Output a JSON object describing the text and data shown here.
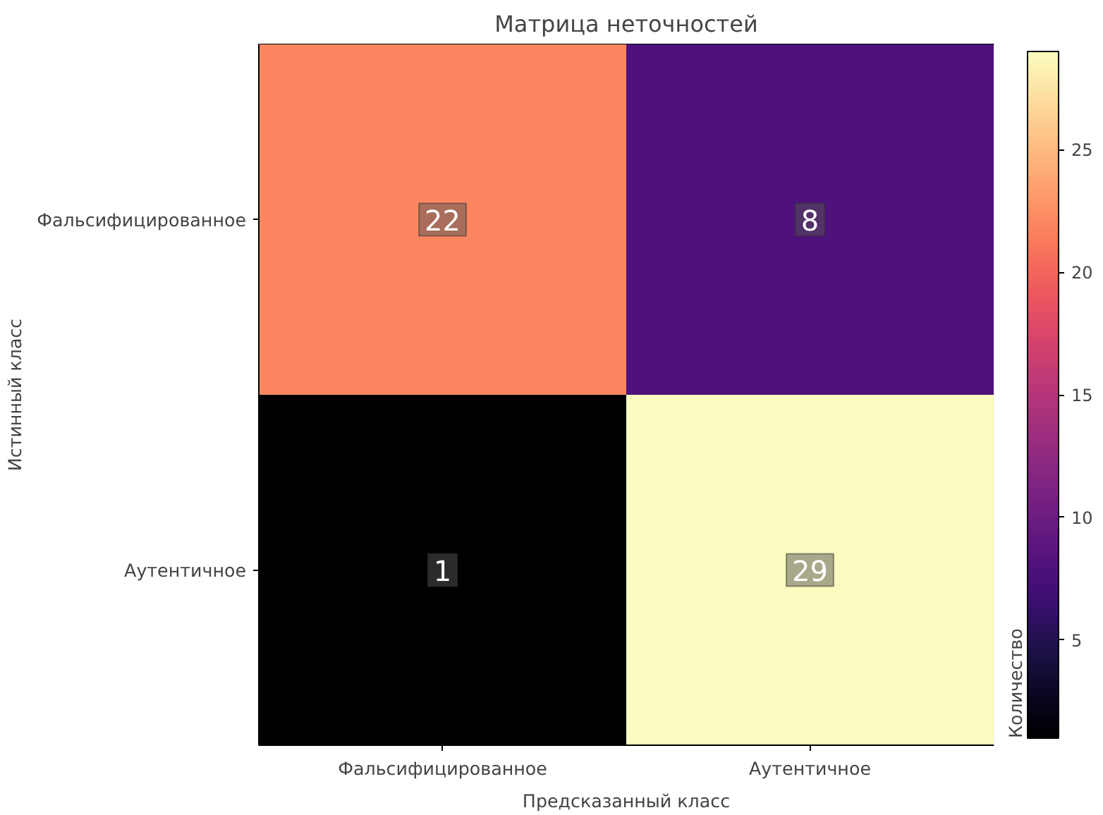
{
  "chart_data": {
    "type": "heatmap",
    "title": "Матрица неточностей",
    "xlabel": "Предсказанный класс",
    "ylabel": "Истинный класс",
    "clabel": "Количество",
    "categories": [
      "Фальсифицированное",
      "Аутентичное"
    ],
    "y_categories": [
      "Фальсифицированное",
      "Аутентичное"
    ],
    "cells": [
      [
        22,
        8
      ],
      [
        1,
        29
      ]
    ],
    "data_labels": true,
    "clim": [
      1,
      29
    ],
    "cticks": [
      5,
      10,
      15,
      20,
      25
    ]
  }
}
